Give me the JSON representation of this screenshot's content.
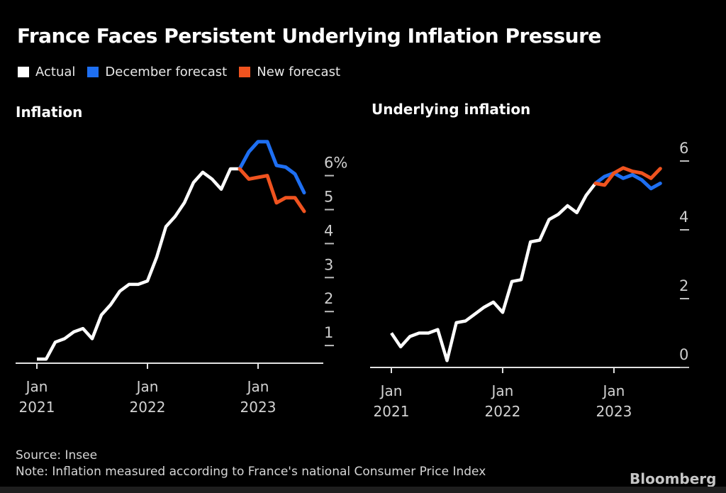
{
  "header": {
    "title": "France Faces Persistent Underlying Inflation Pressure"
  },
  "legend": {
    "items": [
      {
        "key": "actual",
        "label": "Actual",
        "color": "#ffffff"
      },
      {
        "key": "december-forecast",
        "label": "December forecast",
        "color": "#1e6ff2"
      },
      {
        "key": "new-forecast",
        "label": "New forecast",
        "color": "#f0531f"
      }
    ]
  },
  "chart_data": [
    {
      "type": "line",
      "title": "Inflation",
      "x_unit": "month",
      "x_start": "Jan 2021",
      "x_end": "Jun 2023",
      "grid": false,
      "legend_position": "top-left-shared",
      "x_ticks": [
        {
          "month_index": 0,
          "line1": "Jan",
          "line2": "2021"
        },
        {
          "month_index": 12,
          "line1": "Jan",
          "line2": "2022"
        },
        {
          "month_index": 24,
          "line1": "Jan",
          "line2": "2023"
        }
      ],
      "y_ticks": [
        {
          "value": 6,
          "label": "6%"
        },
        {
          "value": 5,
          "label": "5"
        },
        {
          "value": 4,
          "label": "4"
        },
        {
          "value": 3,
          "label": "3"
        },
        {
          "value": 2,
          "label": "2"
        },
        {
          "value": 1,
          "label": "1"
        }
      ],
      "ylim": [
        0.45,
        7.4
      ],
      "series": [
        {
          "key": "actual",
          "name": "Actual",
          "color": "#ffffff",
          "start_month_index": 0,
          "values": [
            0.6,
            0.6,
            1.1,
            1.2,
            1.4,
            1.5,
            1.2,
            1.9,
            2.2,
            2.6,
            2.8,
            2.8,
            2.9,
            3.6,
            4.5,
            4.8,
            5.2,
            5.8,
            6.1,
            5.9,
            5.6,
            6.2,
            6.2
          ]
        },
        {
          "key": "december-forecast",
          "name": "December forecast",
          "color": "#1e6ff2",
          "start_month_index": 22,
          "values": [
            6.2,
            6.7,
            7.0,
            7.0,
            6.3,
            6.25,
            6.05,
            5.5
          ]
        },
        {
          "key": "new-forecast",
          "name": "New forecast",
          "color": "#f0531f",
          "start_month_index": 22,
          "values": [
            6.2,
            5.9,
            5.95,
            6.0,
            5.2,
            5.35,
            5.35,
            4.95
          ]
        }
      ]
    },
    {
      "type": "line",
      "title": "Underlying inflation",
      "x_unit": "month",
      "x_start": "Jan 2021",
      "x_end": "Jun 2023",
      "grid": false,
      "legend_position": "top-left-shared",
      "x_ticks": [
        {
          "month_index": 0,
          "line1": "Jan",
          "line2": "2021"
        },
        {
          "month_index": 12,
          "line1": "Jan",
          "line2": "2022"
        },
        {
          "month_index": 24,
          "line1": "Jan",
          "line2": "2023"
        }
      ],
      "y_ticks": [
        {
          "value": 6,
          "label": "6"
        },
        {
          "value": 4,
          "label": "4"
        },
        {
          "value": 2,
          "label": "2"
        },
        {
          "value": 0,
          "label": "0"
        }
      ],
      "ylim": [
        0,
        6.6
      ],
      "series": [
        {
          "key": "actual",
          "name": "Actual",
          "color": "#ffffff",
          "start_month_index": 0,
          "values": [
            1.0,
            0.6,
            0.9,
            1.0,
            1.0,
            1.1,
            0.2,
            1.3,
            1.35,
            1.55,
            1.75,
            1.9,
            1.6,
            2.5,
            2.55,
            3.65,
            3.7,
            4.3,
            4.45,
            4.7,
            4.5,
            5.0,
            5.35
          ]
        },
        {
          "key": "december-forecast",
          "name": "December forecast",
          "color": "#1e6ff2",
          "start_month_index": 22,
          "values": [
            5.35,
            5.55,
            5.65,
            5.5,
            5.6,
            5.45,
            5.2,
            5.35
          ]
        },
        {
          "key": "new-forecast",
          "name": "New forecast",
          "color": "#f0531f",
          "start_month_index": 22,
          "values": [
            5.35,
            5.3,
            5.65,
            5.8,
            5.7,
            5.65,
            5.5,
            5.78
          ]
        }
      ]
    }
  ],
  "footer": {
    "source": "Source: Insee",
    "note": "Note: Inflation measured according to France's national Consumer Price Index",
    "logo": "Bloomberg"
  }
}
